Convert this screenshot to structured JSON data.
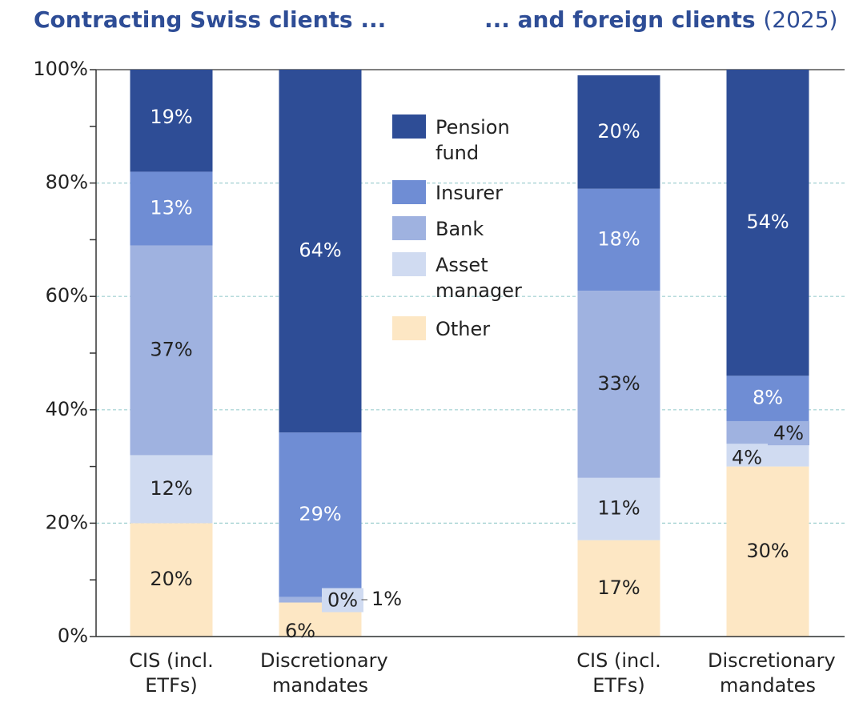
{
  "chart_data": {
    "type": "stacked_bar",
    "titles": [
      "Contracting Swiss clients ...",
      "... and foreign clients",
      "(2025)"
    ],
    "categories": [
      "CIS (incl. ETFs)",
      "Discretionary mandates",
      "CIS (incl. ETFs)",
      "Discretionary mandates"
    ],
    "series": [
      {
        "name": "Other",
        "color": "#fde7c4",
        "values": [
          20,
          6,
          17,
          30
        ],
        "value_labels": [
          "20%",
          "6%",
          "17%",
          "30%"
        ]
      },
      {
        "name": "Asset manager",
        "color": "#d0dbf1",
        "values": [
          12,
          0,
          11,
          4
        ],
        "value_labels": [
          "12%",
          "0%",
          "11%",
          "4%"
        ]
      },
      {
        "name": "Bank",
        "color": "#9fb2e0",
        "values": [
          37,
          1,
          33,
          4
        ],
        "value_labels": [
          "37%",
          "1%",
          "33%",
          "4%"
        ]
      },
      {
        "name": "Insurer",
        "color": "#6f8dd4",
        "values": [
          13,
          29,
          18,
          8
        ],
        "value_labels": [
          "13%",
          "29%",
          "18%",
          "8%"
        ]
      },
      {
        "name": "Pension fund",
        "color": "#2e4d96",
        "values": [
          19,
          64,
          20,
          54
        ],
        "value_labels": [
          "19%",
          "64%",
          "20%",
          "54%"
        ]
      }
    ],
    "ylim": [
      0,
      100
    ],
    "yticks": [
      {
        "value": 0,
        "label": "0%"
      },
      {
        "value": 20,
        "label": "20%"
      },
      {
        "value": 40,
        "label": "40%"
      },
      {
        "value": 60,
        "label": "60%"
      },
      {
        "value": 80,
        "label": "80%"
      },
      {
        "value": 100,
        "label": "100%"
      }
    ],
    "grid": true
  }
}
